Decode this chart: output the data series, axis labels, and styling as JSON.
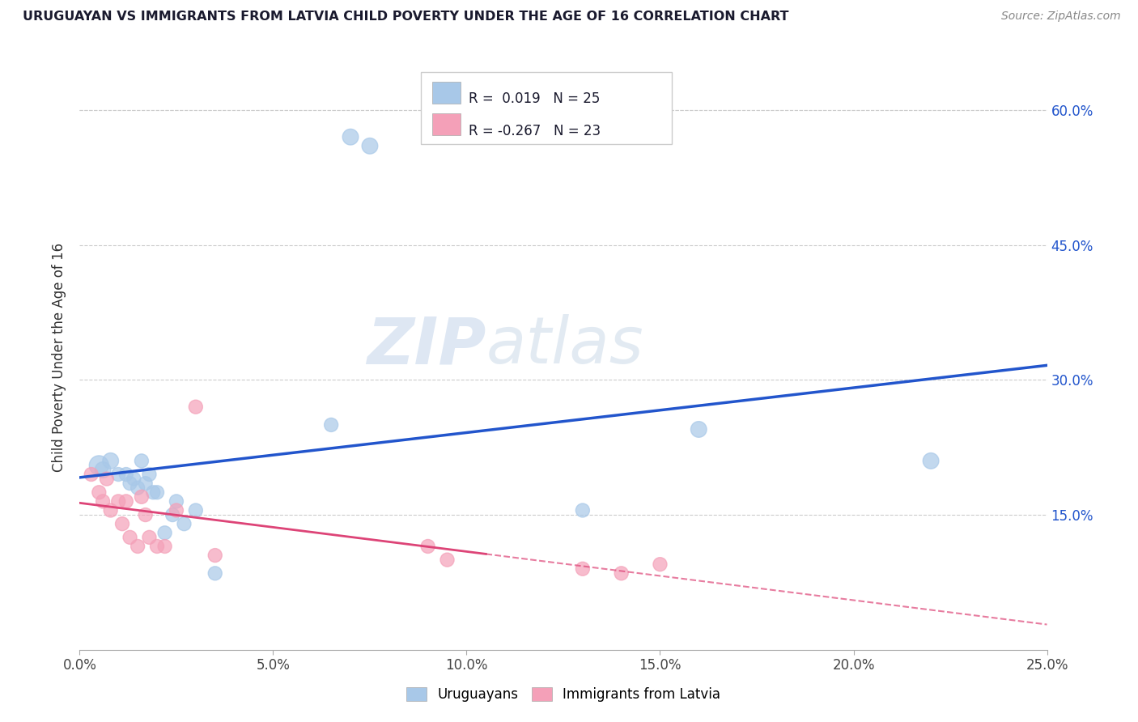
{
  "title": "URUGUAYAN VS IMMIGRANTS FROM LATVIA CHILD POVERTY UNDER THE AGE OF 16 CORRELATION CHART",
  "source": "Source: ZipAtlas.com",
  "ylabel": "Child Poverty Under the Age of 16",
  "xlim": [
    0.0,
    0.25
  ],
  "ylim": [
    0.0,
    0.65
  ],
  "xtick_labels": [
    "0.0%",
    "5.0%",
    "10.0%",
    "15.0%",
    "20.0%",
    "25.0%"
  ],
  "xtick_vals": [
    0.0,
    0.05,
    0.1,
    0.15,
    0.2,
    0.25
  ],
  "ytick_labels": [
    "15.0%",
    "30.0%",
    "45.0%",
    "60.0%"
  ],
  "ytick_vals": [
    0.15,
    0.3,
    0.45,
    0.6
  ],
  "legend_label1": "Uruguayans",
  "legend_label2": "Immigrants from Latvia",
  "r1": "0.019",
  "n1": "25",
  "r2": "-0.267",
  "n2": "23",
  "blue_color": "#a8c8e8",
  "pink_color": "#f4a0b8",
  "blue_line_color": "#2255cc",
  "pink_line_color": "#dd4477",
  "watermark_zip": "ZIP",
  "watermark_atlas": "atlas",
  "uruguayan_x": [
    0.005,
    0.006,
    0.008,
    0.01,
    0.012,
    0.013,
    0.014,
    0.015,
    0.016,
    0.017,
    0.018,
    0.019,
    0.02,
    0.022,
    0.024,
    0.025,
    0.027,
    0.03,
    0.035,
    0.065,
    0.07,
    0.075,
    0.16,
    0.22,
    0.13
  ],
  "uruguayan_y": [
    0.205,
    0.2,
    0.21,
    0.195,
    0.195,
    0.185,
    0.19,
    0.18,
    0.21,
    0.185,
    0.195,
    0.175,
    0.175,
    0.13,
    0.15,
    0.165,
    0.14,
    0.155,
    0.085,
    0.25,
    0.57,
    0.56,
    0.245,
    0.21,
    0.155
  ],
  "latvian_x": [
    0.003,
    0.005,
    0.006,
    0.007,
    0.008,
    0.01,
    0.011,
    0.012,
    0.013,
    0.015,
    0.016,
    0.017,
    0.018,
    0.02,
    0.022,
    0.025,
    0.03,
    0.035,
    0.09,
    0.095,
    0.13,
    0.14,
    0.15
  ],
  "latvian_y": [
    0.195,
    0.175,
    0.165,
    0.19,
    0.155,
    0.165,
    0.14,
    0.165,
    0.125,
    0.115,
    0.17,
    0.15,
    0.125,
    0.115,
    0.115,
    0.155,
    0.27,
    0.105,
    0.115,
    0.1,
    0.09,
    0.085,
    0.095
  ],
  "uruguayan_sizes": [
    300,
    200,
    200,
    150,
    150,
    150,
    150,
    150,
    150,
    150,
    150,
    150,
    150,
    150,
    150,
    150,
    150,
    150,
    150,
    150,
    200,
    200,
    200,
    200,
    150
  ],
  "latvian_sizes": [
    150,
    150,
    150,
    150,
    150,
    150,
    150,
    150,
    150,
    150,
    150,
    150,
    150,
    150,
    150,
    150,
    150,
    150,
    150,
    150,
    150,
    150,
    150
  ]
}
